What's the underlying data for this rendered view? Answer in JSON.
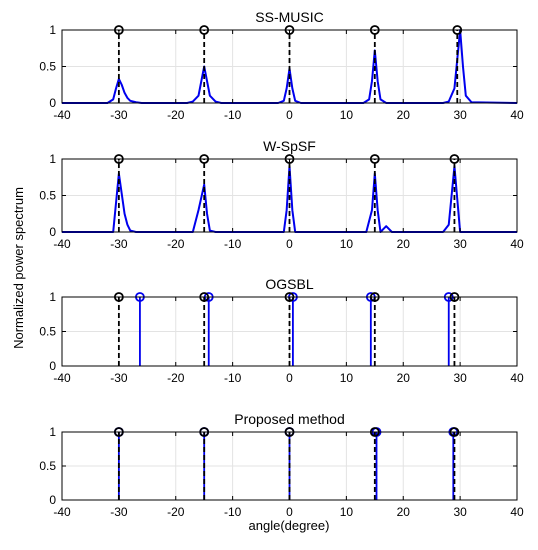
{
  "figure": {
    "ylabel": "Normalized power spectrum",
    "xlabel": "angle(degree)"
  },
  "colors": {
    "true_doa": "#000000",
    "estimate": "#0000ee",
    "grid": "#e3e3e3"
  },
  "chart_data": [
    {
      "type": "line",
      "title": "SS-MUSIC",
      "xlim": [
        -40,
        40
      ],
      "ylim": [
        0,
        1
      ],
      "xticks": [
        -40,
        -30,
        -20,
        -10,
        0,
        10,
        20,
        30,
        40
      ],
      "yticks": [
        0,
        0.5,
        1
      ],
      "yticklabels": [
        "0",
        "0.5",
        "1"
      ],
      "grid": true,
      "true_doa": [
        -30,
        -15,
        0,
        15,
        29.5
      ],
      "series": [
        {
          "x": [
            -40,
            -32,
            -31,
            -30.5,
            -30,
            -29.5,
            -29,
            -28.5,
            -28,
            -27,
            -26,
            -25,
            -18,
            -17,
            -16,
            -15.5,
            -15,
            -14.5,
            -14,
            -13,
            -12,
            -2,
            -1,
            -0.5,
            0,
            0.5,
            1,
            2,
            13,
            14,
            14.5,
            15,
            15.5,
            16,
            17,
            27,
            28,
            29,
            29.5,
            30,
            30.5,
            31,
            32,
            40
          ],
          "y": [
            0,
            0,
            0.05,
            0.2,
            0.33,
            0.25,
            0.14,
            0.07,
            0.03,
            0.01,
            0,
            0,
            0,
            0.02,
            0.1,
            0.3,
            0.5,
            0.3,
            0.1,
            0.02,
            0,
            0,
            0.03,
            0.2,
            0.47,
            0.2,
            0.03,
            0,
            0,
            0.05,
            0.3,
            0.72,
            0.3,
            0.05,
            0,
            0,
            0.02,
            0.2,
            0.6,
            1.0,
            0.5,
            0.1,
            0.01,
            0
          ]
        }
      ],
      "stems": []
    },
    {
      "type": "line",
      "title": "W-SpSF",
      "xlim": [
        -40,
        40
      ],
      "ylim": [
        0,
        1
      ],
      "xticks": [
        -40,
        -30,
        -20,
        -10,
        0,
        10,
        20,
        30,
        40
      ],
      "yticks": [
        0,
        0.5,
        1
      ],
      "yticklabels": [
        "0",
        "0.5",
        "1"
      ],
      "grid": true,
      "true_doa": [
        -30,
        -15,
        0,
        15,
        29
      ],
      "series": [
        {
          "x": [
            -40,
            -31,
            -30,
            -29,
            -28.5,
            -28,
            -27,
            -17,
            -16,
            -15,
            -14.5,
            -14,
            -13,
            -1,
            -0.5,
            0,
            0.5,
            1,
            13.5,
            14.5,
            15,
            15.5,
            16,
            16.5,
            17,
            17.5,
            18,
            27,
            28,
            29,
            30,
            40
          ],
          "y": [
            0,
            0,
            0.8,
            0.25,
            0.1,
            0.02,
            0,
            0,
            0.3,
            0.65,
            0.25,
            0.02,
            0,
            0,
            0.3,
            0.9,
            0.3,
            0,
            0,
            0.3,
            0.8,
            0.3,
            0,
            0.04,
            0.08,
            0.04,
            0,
            0,
            0.1,
            0.9,
            0,
            0
          ]
        }
      ],
      "stems": []
    },
    {
      "type": "stem",
      "title": "OGSBL",
      "xlim": [
        -40,
        40
      ],
      "ylim": [
        0,
        1
      ],
      "xticks": [
        -40,
        -30,
        -20,
        -10,
        0,
        10,
        20,
        30,
        40
      ],
      "yticks": [
        0,
        0.5,
        1
      ],
      "yticklabels": [
        "0",
        "0.5",
        "1"
      ],
      "grid": true,
      "true_doa": [
        -30,
        -15,
        0,
        15,
        29
      ],
      "series": [],
      "stems": [
        -26.3,
        -14.2,
        0.6,
        14.3,
        28
      ]
    },
    {
      "type": "stem",
      "title": "Proposed method",
      "xlim": [
        -40,
        40
      ],
      "ylim": [
        0,
        1
      ],
      "xticks": [
        -40,
        -30,
        -20,
        -10,
        0,
        10,
        20,
        30,
        40
      ],
      "yticks": [
        0,
        0.5,
        1
      ],
      "yticklabels": [
        "0",
        "0.5",
        "1"
      ],
      "grid": true,
      "true_doa": [
        -30,
        -15,
        0,
        15,
        29
      ],
      "series": [],
      "stems": [
        -30,
        -15,
        0,
        15.3,
        28.8
      ]
    }
  ]
}
